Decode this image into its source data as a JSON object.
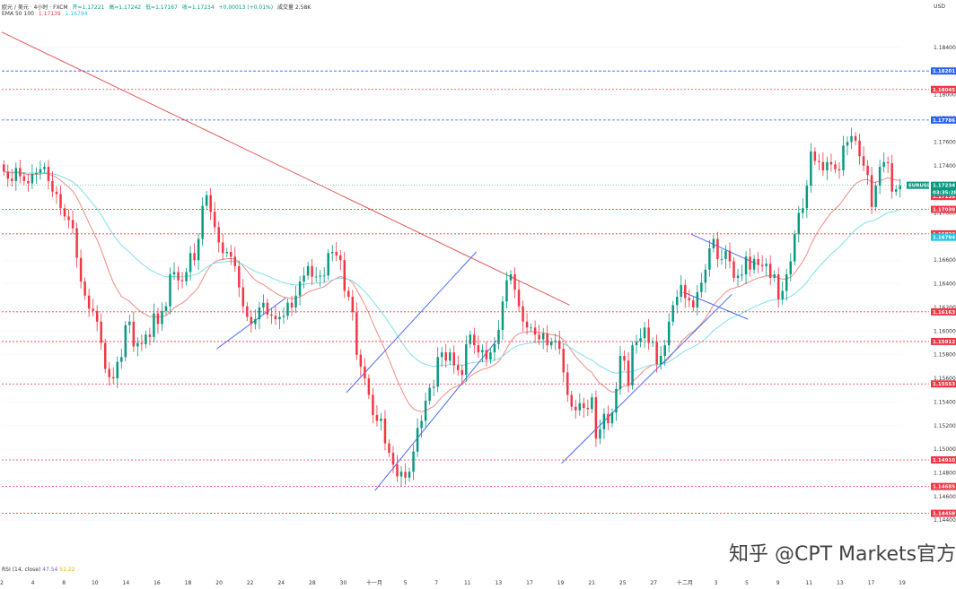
{
  "header": {
    "symbol": "欧元 / 美元 · 4小时 · FXCM",
    "open": "开=1.17221",
    "high": "高=1.17242",
    "low": "低=1.17167",
    "close": "收=1.17234",
    "change": "+0.00013 (+0.01%)",
    "volume": "成交量 2.58K",
    "ema_label": "EMA 50 100",
    "ema50_value": "1.17139",
    "ema100_value": "1.16794"
  },
  "currency_label": "USD",
  "rsi": {
    "label": "RSI (14, close)",
    "v1": "47.54",
    "v2": "51.22"
  },
  "watermark": "知乎 @CPT Markets官方",
  "colors": {
    "up": "#089981",
    "down": "#f23645",
    "ema50": "#f28b82",
    "ema100": "#7fe0ea",
    "trendline": "#4a6cf7",
    "resistance": "#e05656",
    "blue_level": "#2962ff",
    "red_level": "#f23645"
  },
  "chart_data": {
    "type": "candlestick",
    "title": "欧元 / 美元 · 4小时 · FXCM",
    "ylim": [
      1.1425,
      1.1865
    ],
    "y_ticks": [
      "1.18400",
      "1.18200",
      "1.18000",
      "1.17800",
      "1.17600",
      "1.17400",
      "1.17200",
      "1.17000",
      "1.16800",
      "1.16600",
      "1.16400",
      "1.16200",
      "1.16000",
      "1.15800",
      "1.15600",
      "1.15400",
      "1.15200",
      "1.15000",
      "1.14800",
      "1.14600",
      "1.14400"
    ],
    "x_ticks": [
      "2",
      "4",
      "8",
      "10",
      "14",
      "16",
      "18",
      "20",
      "22",
      "24",
      "28",
      "30",
      "十一月",
      "5",
      "7",
      "11",
      "13",
      "17",
      "19",
      "21",
      "25",
      "27",
      "十二月",
      "3",
      "5",
      "9",
      "11",
      "13",
      "17",
      "19"
    ],
    "closes": [
      1.1735,
      1.1729,
      1.1727,
      1.1738,
      1.1731,
      1.1727,
      1.1725,
      1.1733,
      1.1734,
      1.1737,
      1.1739,
      1.1727,
      1.1718,
      1.1716,
      1.1704,
      1.1697,
      1.1694,
      1.1687,
      1.1662,
      1.1642,
      1.163,
      1.1619,
      1.1617,
      1.1608,
      1.159,
      1.1568,
      1.1561,
      1.156,
      1.1574,
      1.1578,
      1.1605,
      1.1608,
      1.1587,
      1.159,
      1.1589,
      1.1597,
      1.1595,
      1.1615,
      1.1606,
      1.1617,
      1.1621,
      1.1648,
      1.165,
      1.1643,
      1.1642,
      1.165,
      1.1666,
      1.166,
      1.1678,
      1.1706,
      1.1715,
      1.1701,
      1.1688,
      1.1675,
      1.1666,
      1.1667,
      1.1663,
      1.1655,
      1.1637,
      1.1621,
      1.1612,
      1.1606,
      1.161,
      1.162,
      1.1624,
      1.1614,
      1.1613,
      1.161,
      1.1612,
      1.1613,
      1.1624,
      1.162,
      1.163,
      1.1642,
      1.1647,
      1.1655,
      1.1646,
      1.1646,
      1.1647,
      1.1647,
      1.1666,
      1.1667,
      1.1664,
      1.166,
      1.1634,
      1.1629,
      1.1616,
      1.158,
      1.157,
      1.156,
      1.1546,
      1.1529,
      1.1524,
      1.1526,
      1.1505,
      1.1497,
      1.1487,
      1.1477,
      1.1481,
      1.1476,
      1.1481,
      1.1498,
      1.1518,
      1.1524,
      1.1541,
      1.1552,
      1.1553,
      1.1578,
      1.1582,
      1.1575,
      1.1582,
      1.1571,
      1.1567,
      1.1563,
      1.1589,
      1.1597,
      1.1588,
      1.1582,
      1.1584,
      1.1576,
      1.1582,
      1.1589,
      1.1601,
      1.1625,
      1.1643,
      1.1648,
      1.1635,
      1.1621,
      1.1608,
      1.1603,
      1.1603,
      1.1597,
      1.1593,
      1.1598,
      1.1588,
      1.1591,
      1.1592,
      1.1585,
      1.1565,
      1.1546,
      1.1536,
      1.1533,
      1.1539,
      1.1535,
      1.1534,
      1.1544,
      1.1509,
      1.1517,
      1.153,
      1.1522,
      1.1531,
      1.1551,
      1.1579,
      1.1575,
      1.1554,
      1.1588,
      1.1591,
      1.1594,
      1.1603,
      1.159,
      1.1591,
      1.1572,
      1.1579,
      1.1588,
      1.1608,
      1.1622,
      1.1629,
      1.1639,
      1.1628,
      1.1626,
      1.162,
      1.1633,
      1.1641,
      1.1652,
      1.167,
      1.1678,
      1.1661,
      1.1661,
      1.1668,
      1.1659,
      1.1645,
      1.1647,
      1.1648,
      1.1663,
      1.1652,
      1.1661,
      1.1656,
      1.1655,
      1.1657,
      1.1645,
      1.1648,
      1.1627,
      1.1634,
      1.1648,
      1.1659,
      1.1682,
      1.17,
      1.1704,
      1.1723,
      1.1752,
      1.1744,
      1.1743,
      1.1736,
      1.1743,
      1.1741,
      1.1737,
      1.1736,
      1.1757,
      1.176,
      1.1765,
      1.1761,
      1.1748,
      1.174,
      1.1732,
      1.1705,
      1.1723,
      1.1739,
      1.1743,
      1.1742,
      1.1718,
      1.172,
      1.1723
    ],
    "ema50_value": 1.17139,
    "ema100_value": 1.16794,
    "blue_levels": [
      "1.18201",
      "1.17786"
    ],
    "red_levels": [
      "1.18045",
      "1.17030",
      "1.16823",
      "1.16163",
      "1.15912",
      "1.15553",
      "1.14910",
      "1.14685",
      "1.14458"
    ],
    "last_price_label": "EURUSD",
    "last_price": "1.17234",
    "countdown": "03:35:28",
    "ema50_label": "1.17139",
    "ema100_label": "1.16794"
  }
}
